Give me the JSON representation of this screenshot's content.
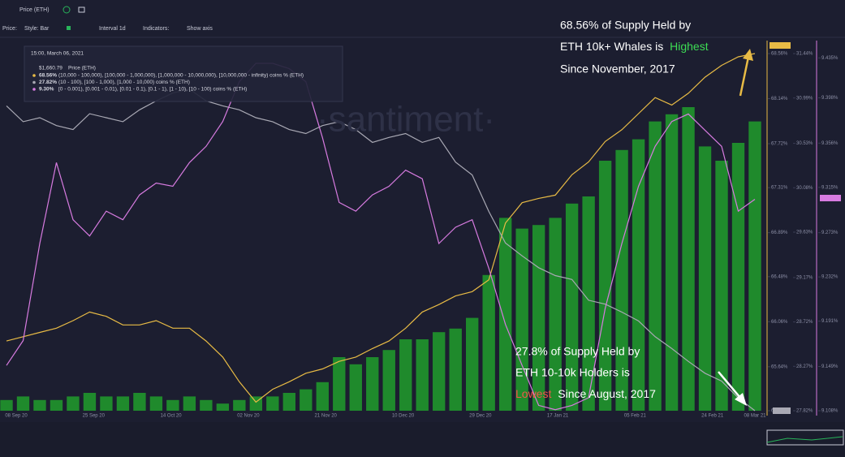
{
  "toolbar": {
    "tab": "Price (ETH)",
    "price": "Price:",
    "style": "Style: Bar",
    "interval": "Interval 1d",
    "indicators": "Indicators:",
    "show_axis": "Show axis"
  },
  "chart_data": {
    "type": "bar",
    "watermark": "·santiment·",
    "tooltip": {
      "date": "15:00, March 06, 2021",
      "price": "$1,660.79",
      "price_name": "Price (ETH)",
      "values": [
        "68.56%",
        "27.82%",
        "9.30%"
      ]
    },
    "xtick_labels": [
      "08 Sep 20",
      "25 Sep 20",
      "14 Oct 20",
      "02 Nov 20",
      "21 Nov 20",
      "10 Dec 20",
      "29 Dec 20",
      "17 Jan 21",
      "05 Feb 21",
      "24 Feb 21",
      "08 Mar 21"
    ],
    "series": [
      {
        "name": "(10,000 - 100,000), [100,000 - 1,000,000), [1,000,000 - 10,000,000), [10,000,000 - infinity) coins % (ETH)",
        "color": "#e8bb45",
        "axis": "y",
        "values": [
          65.88,
          65.92,
          65.96,
          66.0,
          66.07,
          66.15,
          66.11,
          66.03,
          66.03,
          66.07,
          66.0,
          66.0,
          65.88,
          65.73,
          65.5,
          65.31,
          65.43,
          65.5,
          65.58,
          65.62,
          65.69,
          65.73,
          65.81,
          65.88,
          66.0,
          66.15,
          66.22,
          66.3,
          66.34,
          66.45,
          66.98,
          67.17,
          67.21,
          67.24,
          67.43,
          67.55,
          67.74,
          67.85,
          68.0,
          68.15,
          68.08,
          68.19,
          68.34,
          68.45,
          68.53,
          68.56
        ]
      },
      {
        "name": "(10 - 100), [100 - 1,000), [1,000 - 10,000) coins % (ETH)",
        "color": "#a9a9b4",
        "axis": "y2",
        "values": [
          30.91,
          30.75,
          30.79,
          30.71,
          30.67,
          30.83,
          30.79,
          30.75,
          30.87,
          30.96,
          31.04,
          31.08,
          30.96,
          30.91,
          30.87,
          30.79,
          30.75,
          30.67,
          30.63,
          30.71,
          30.75,
          30.67,
          30.54,
          30.59,
          30.63,
          30.54,
          30.59,
          30.34,
          30.21,
          29.84,
          29.52,
          29.39,
          29.27,
          29.19,
          29.15,
          28.94,
          28.9,
          28.82,
          28.73,
          28.57,
          28.45,
          28.32,
          28.2,
          28.12,
          27.95,
          27.82
        ]
      },
      {
        "name": "[0 - 0.001), [0.001 - 0.01), [0.01 - 0.1), [0.1 - 1), [1 - 10), [10 - 100) coins % (ETH)",
        "color": "#d77be0",
        "axis": "y3",
        "values": [
          9.15,
          9.173,
          9.263,
          9.338,
          9.285,
          9.27,
          9.293,
          9.285,
          9.308,
          9.319,
          9.316,
          9.338,
          9.353,
          9.376,
          9.413,
          9.43,
          9.43,
          9.425,
          9.413,
          9.361,
          9.301,
          9.293,
          9.308,
          9.316,
          9.331,
          9.323,
          9.263,
          9.278,
          9.285,
          9.24,
          9.188,
          9.15,
          9.113,
          9.109,
          9.113,
          9.12,
          9.203,
          9.263,
          9.316,
          9.353,
          9.376,
          9.383,
          9.368,
          9.353,
          9.293,
          9.304
        ]
      },
      {
        "color": "#1f8a2c",
        "axis": "y4",
        "values": [
          3,
          4,
          3,
          3,
          4,
          5,
          4,
          4,
          5,
          4,
          3,
          4,
          3,
          2,
          3,
          4,
          4,
          5,
          6,
          8,
          15,
          13,
          15,
          17,
          20,
          20,
          22,
          23,
          26,
          38,
          54,
          51,
          52,
          54,
          58,
          60,
          70,
          73,
          76,
          81,
          83,
          85,
          74,
          70,
          75,
          81
        ]
      }
    ],
    "ylim": [
      65.23,
      68.56
    ],
    "yticks": [
      {
        "value": 65.23,
        "label": "65.23%"
      },
      {
        "value": 65.64,
        "label": "65.64%"
      },
      {
        "value": 66.06,
        "label": "66.06%"
      },
      {
        "value": 66.48,
        "label": "66.48%"
      },
      {
        "value": 66.89,
        "label": "66.89%"
      },
      {
        "value": 67.31,
        "label": "67.31%"
      },
      {
        "value": 67.72,
        "label": "67.72%"
      },
      {
        "value": 68.14,
        "label": "68.14%"
      },
      {
        "value": 68.56,
        "label": "68.56%"
      }
    ],
    "y2lim": [
      27.82,
      31.44
    ],
    "y2ticks": [
      {
        "value": 27.82,
        "label": "27.82%"
      },
      {
        "value": 28.27,
        "label": "28.27%"
      },
      {
        "value": 28.72,
        "label": "28.72%"
      },
      {
        "value": 29.17,
        "label": "29.17%"
      },
      {
        "value": 29.63,
        "label": "29.63%"
      },
      {
        "value": 30.08,
        "label": "30.08%"
      },
      {
        "value": 30.53,
        "label": "30.53%"
      },
      {
        "value": 30.99,
        "label": "30.99%"
      },
      {
        "value": 31.44,
        "label": "31.44%"
      }
    ],
    "y3lim": [
      9.108,
      9.439
    ],
    "y3ticks": [
      {
        "value": 9.108,
        "label": "9.108%"
      },
      {
        "value": 9.149,
        "label": "9.149%"
      },
      {
        "value": 9.191,
        "label": "9.191%"
      },
      {
        "value": 9.232,
        "label": "9.232%"
      },
      {
        "value": 9.273,
        "label": "9.273%"
      },
      {
        "value": 9.315,
        "label": "9.315%"
      },
      {
        "value": 9.356,
        "label": "9.356%"
      },
      {
        "value": 9.398,
        "label": "9.398%"
      },
      {
        "value": 9.435,
        "label": "9.435%"
      }
    ],
    "y4lim": [
      0,
      100
    ],
    "annotations": [
      {
        "lines": [
          "68.56% of Supply Held by",
          "ETH 10k+ Whales is ",
          "Highest",
          "Since November, 2017"
        ],
        "highlight_color": "#3ddc54"
      },
      {
        "lines": [
          "27.8% of Supply Held by",
          "ETH 10-10k Holders is",
          "Lowest",
          " Since August, 2017"
        ],
        "highlight_color": "#f2574a"
      }
    ]
  }
}
